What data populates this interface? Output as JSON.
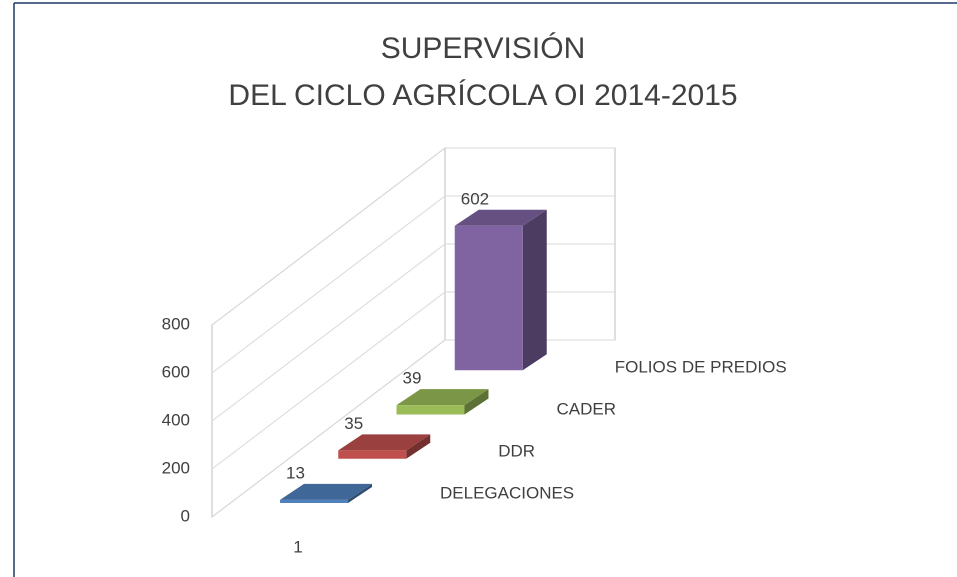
{
  "chart_data": {
    "type": "bar3d",
    "title": [
      "SUPERVISIÓN",
      "DEL CICLO AGRÍCOLA OI 2014-2015"
    ],
    "categories": [
      "1"
    ],
    "series": [
      {
        "name": "DELEGACIONES",
        "color": "#4f81bd",
        "values": [
          13
        ]
      },
      {
        "name": "DDR",
        "color": "#c0504d",
        "values": [
          35
        ]
      },
      {
        "name": "CADER",
        "color": "#9bbb59",
        "values": [
          39
        ]
      },
      {
        "name": "FOLIOS DE PREDIOS",
        "color": "#8064a2",
        "values": [
          602
        ]
      }
    ],
    "ylim": [
      0,
      800
    ],
    "yticks": [
      0,
      200,
      400,
      600,
      800
    ],
    "grid": true
  }
}
